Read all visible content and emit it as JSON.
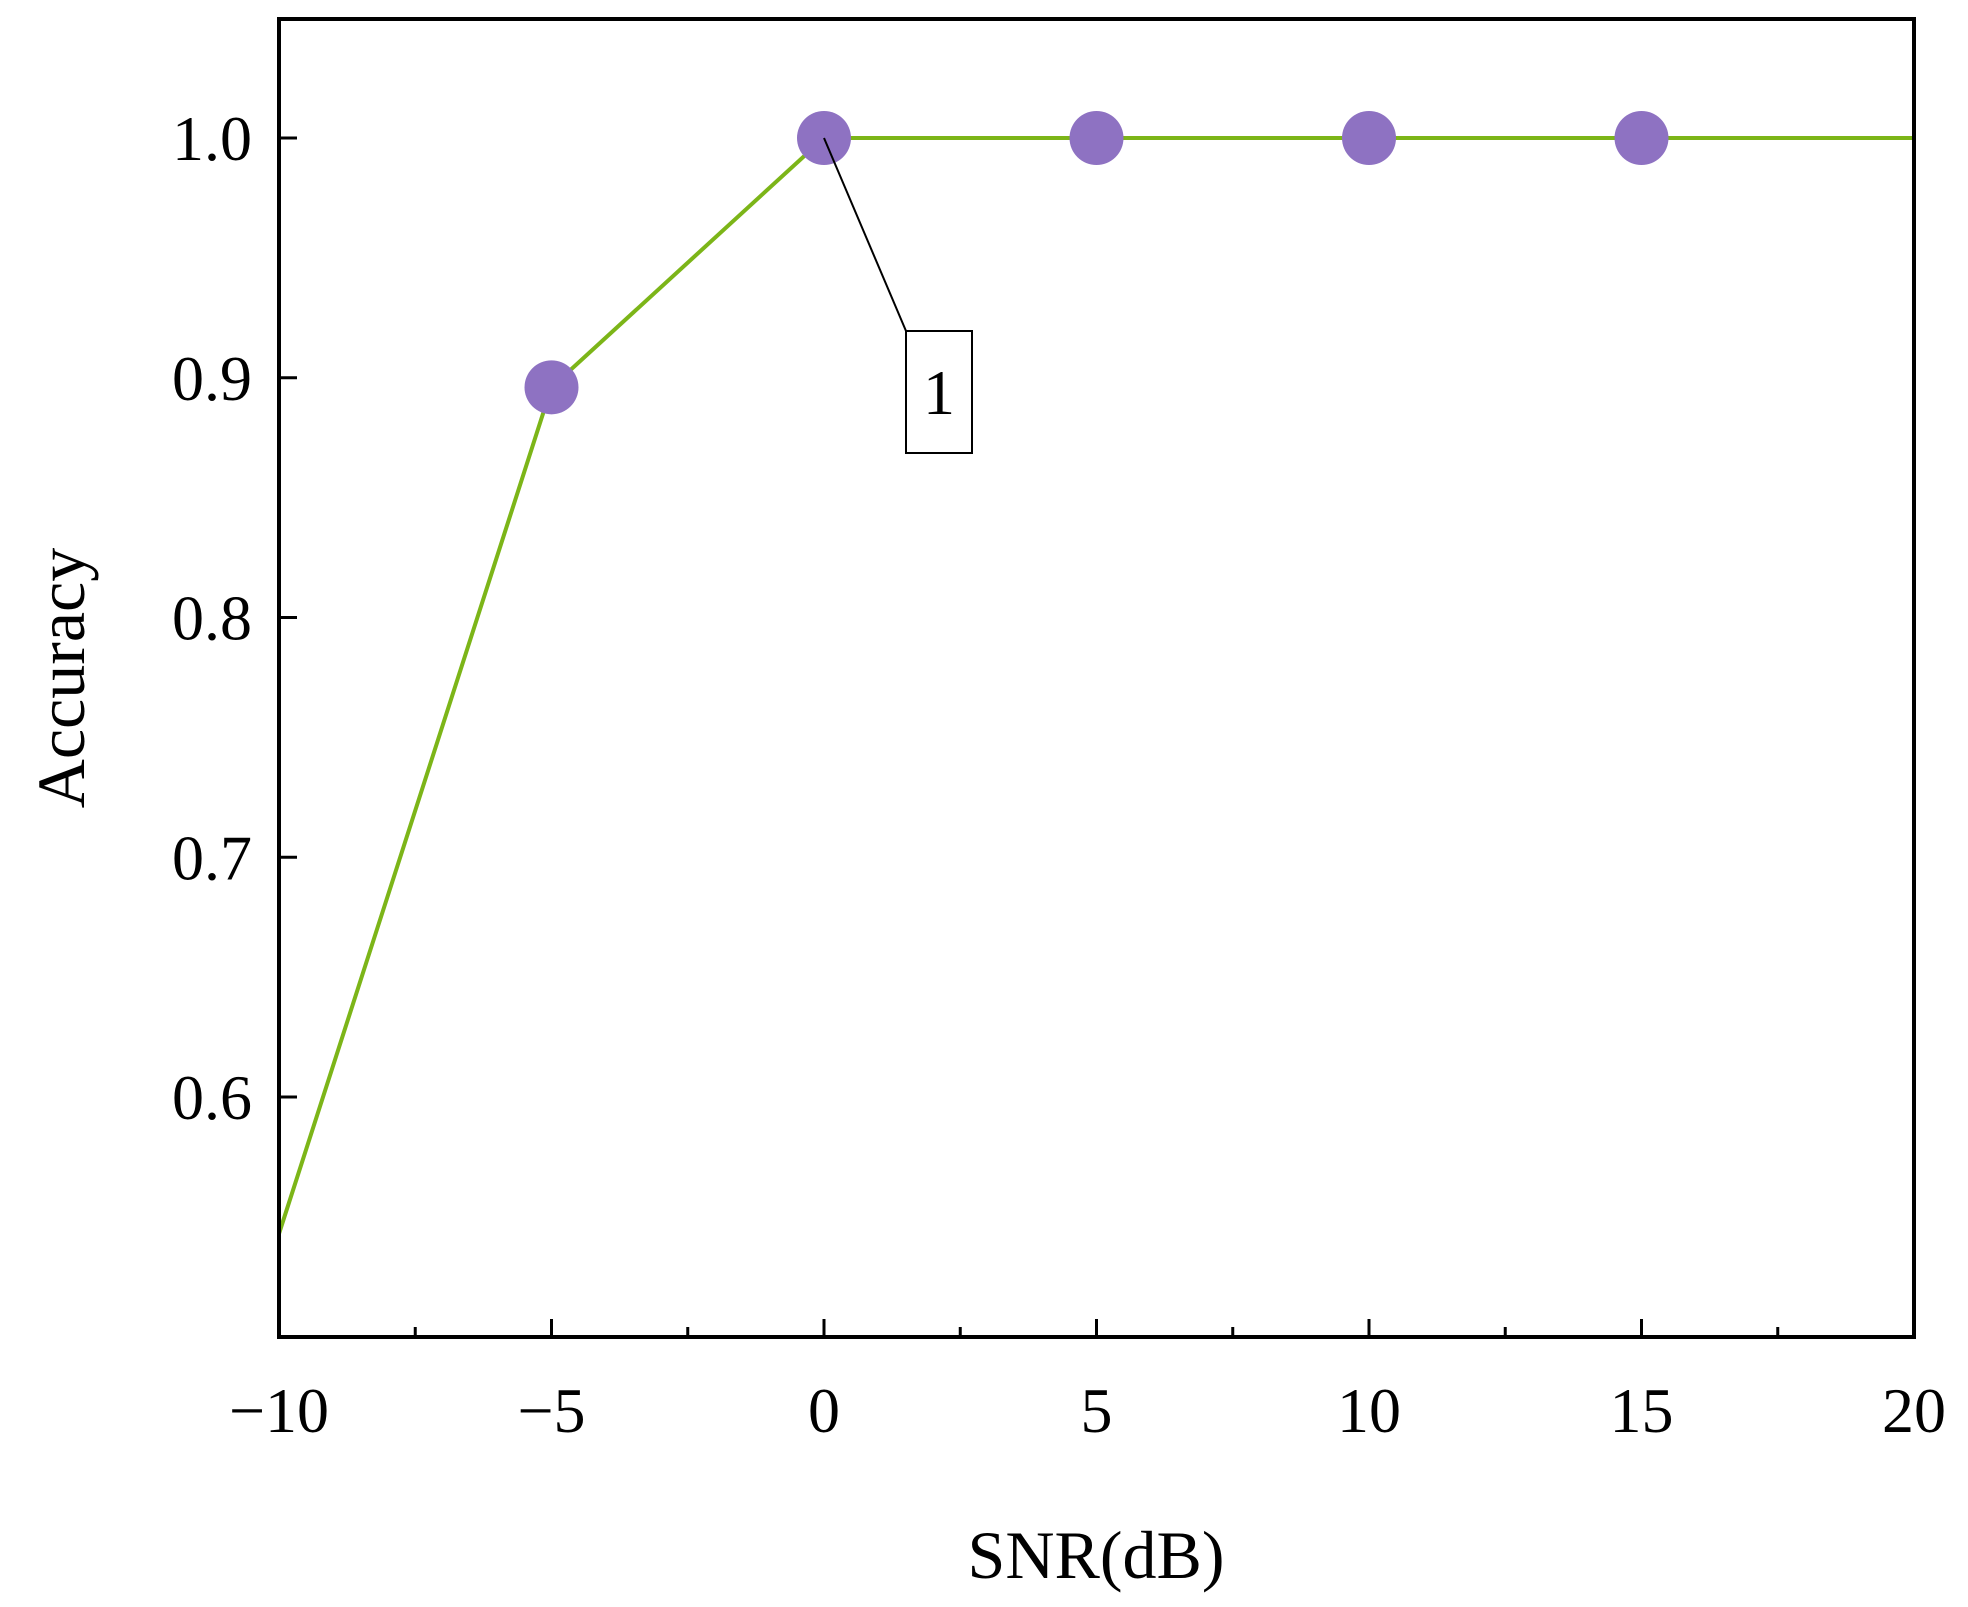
{
  "chart_data": {
    "type": "line",
    "title": "",
    "xlabel": "SNR(dB)",
    "ylabel": "Accuracy",
    "xlim": [
      -10,
      20
    ],
    "ylim": [
      0.5,
      1.05
    ],
    "xticks": [
      -10,
      -5,
      0,
      5,
      10,
      15,
      20
    ],
    "xtick_labels": [
      "−10",
      "−5",
      "0",
      "5",
      "10",
      "15",
      "20"
    ],
    "xminor": [
      -7.5,
      -2.5,
      2.5,
      7.5,
      12.5,
      17.5
    ],
    "yticks": [
      0.6,
      0.7,
      0.8,
      0.9,
      1.0
    ],
    "ytick_labels": [
      "0.6",
      "0.7",
      "0.8",
      "0.9",
      "1.0"
    ],
    "grid": false,
    "series": [
      {
        "line_color": "#7cb518",
        "marker_color": "#8e72c2",
        "x": [
          -10,
          -5,
          0,
          5,
          10,
          15,
          20
        ],
        "y": [
          0.543,
          0.896,
          1.0,
          1.0,
          1.0,
          1.0,
          1.0
        ],
        "markers_at": [
          -5,
          0,
          5,
          10,
          15
        ]
      }
    ],
    "annotations": [
      {
        "text": "1",
        "x": 0,
        "y": 1.0
      }
    ]
  }
}
